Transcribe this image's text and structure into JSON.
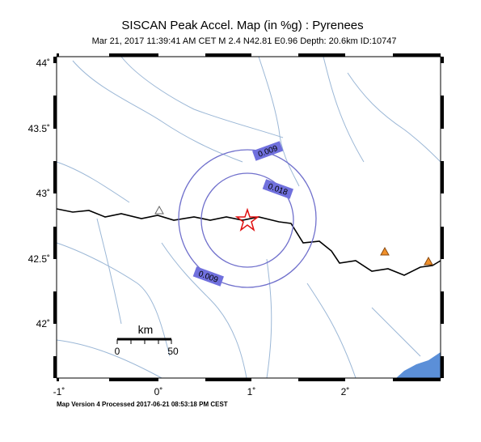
{
  "header": {
    "title": "SISCAN Peak Accel. Map (in %g) : Pyrenees",
    "subtitle": "Mar 21, 2017 11:39:41 AM CET   M 2.4   N42.81 E0.96   Depth: 20.6km   ID:10747"
  },
  "map": {
    "lat_labels": [
      "44˚",
      "43.5˚",
      "43˚",
      "42.5˚",
      "42˚"
    ],
    "lon_labels": [
      "-1˚",
      "0˚",
      "1˚",
      "2˚"
    ],
    "contour_labels": [
      "0.009",
      "0.018",
      "0.009"
    ],
    "scale": {
      "unit": "km",
      "start": "0",
      "end": "50"
    }
  },
  "footer": "Map Version 4 Processed 2017-06-21 08:53:18 PM CEST"
}
